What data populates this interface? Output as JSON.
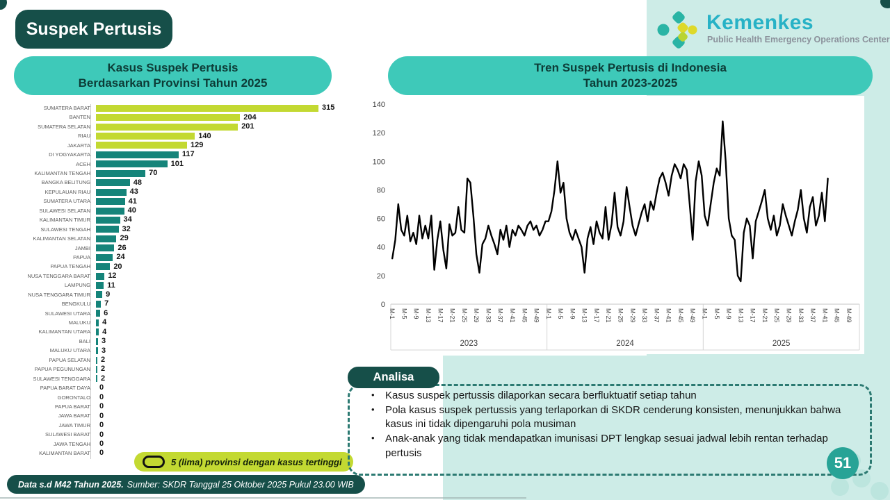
{
  "page": {
    "title": "Suspek Pertusis",
    "page_number": "51",
    "footer_bold": "Data s.d M42 Tahun 2025.",
    "footer_rest": "Sumber: SKDR Tanggal 25 Oktober 2025 Pukul 23.00 WIB"
  },
  "logo": {
    "name": "Kemenkes",
    "subtitle": "Public Health Emergency Operations Center"
  },
  "colors": {
    "dark_teal": "#164f49",
    "header_teal": "#3ec9b9",
    "mint_bg": "#cdece7",
    "lime": "#c3d932",
    "bar_teal": "#15847a",
    "line_black": "#000000",
    "page_circle": "#27a396"
  },
  "bar_panel": {
    "title_line1": "Kasus Suspek Pertusis",
    "title_line2": "Berdasarkan Provinsi Tahun 2025",
    "legend": "5 (lima) provinsi dengan kasus tertinggi"
  },
  "line_panel": {
    "title_line1": "Tren Suspek Pertusis di Indonesia",
    "title_line2": "Tahun 2023-2025"
  },
  "analysis": {
    "header": "Analisa",
    "bullets": [
      "Kasus suspek pertussis dilaporkan secara berfluktuatif setiap tahun",
      "Pola kasus suspek pertussis yang terlaporkan di SKDR cenderung konsisten, menunjukkan bahwa kasus ini tidak dipengaruhi pola musiman",
      "Anak-anak yang tidak mendapatkan imunisasi DPT lengkap sesuai jadwal lebih rentan terhadap pertusis"
    ]
  },
  "chart_data": [
    {
      "type": "bar",
      "title": "Kasus Suspek Pertusis Berdasarkan Provinsi Tahun 2025",
      "orientation": "horizontal",
      "categories": [
        "SUMATERA BARAT",
        "BANTEN",
        "SUMATERA SELATAN",
        "RIAU",
        "JAKARTA",
        "DI YOGYAKARTA",
        "ACEH",
        "KALIMANTAN TENGAH",
        "BANGKA BELITUNG",
        "KEPULAUAN RIAU",
        "SUMATERA UTARA",
        "SULAWESI SELATAN",
        "KALIMANTAN TIMUR",
        "SULAWESI TENGAH",
        "KALIMANTAN SELATAN",
        "JAMBI",
        "PAPUA",
        "PAPUA TENGAH",
        "NUSA TENGGARA BARAT",
        "LAMPUNG",
        "NUSA TENGGARA TIMUR",
        "BENGKULU",
        "SULAWESI UTARA",
        "MALUKU",
        "KALIMANTAN UTARA",
        "BALI",
        "MALUKU UTARA",
        "PAPUA SELATAN",
        "PAPUA PEGUNUNGAN",
        "SULAWESI TENGGARA",
        "PAPUA BARAT DAYA",
        "GORONTALO",
        "PAPUA BARAT",
        "JAWA BARAT",
        "JAWA TIMUR",
        "SULAWESI BARAT",
        "JAWA TENGAH",
        "KALIMANTAN BARAT"
      ],
      "values": [
        315,
        204,
        201,
        140,
        129,
        117,
        101,
        70,
        48,
        43,
        41,
        40,
        34,
        32,
        29,
        26,
        24,
        20,
        12,
        11,
        9,
        7,
        6,
        4,
        4,
        3,
        3,
        2,
        2,
        2,
        0,
        0,
        0,
        0,
        0,
        0,
        0,
        0
      ],
      "highlight_top_n": 5,
      "highlight_color": "#c3d932",
      "bar_color": "#15847a"
    },
    {
      "type": "line",
      "title": "Tren Suspek Pertusis di Indonesia Tahun 2023-2025",
      "ylabel": "",
      "ylim": [
        0,
        140
      ],
      "y_ticks": [
        0,
        20,
        40,
        60,
        80,
        100,
        120,
        140
      ],
      "x_tick_labels": [
        "M-1",
        "M-5",
        "M-9",
        "M-13",
        "M-17",
        "M-21",
        "M-25",
        "M-29",
        "M-33",
        "M-37",
        "M-41",
        "M-45",
        "M-49"
      ],
      "weeks_per_year": 52,
      "grid": false,
      "line_color": "#000000",
      "series": [
        {
          "name": "2023",
          "values": [
            32,
            45,
            70,
            52,
            48,
            62,
            44,
            50,
            42,
            62,
            46,
            55,
            46,
            62,
            24,
            45,
            58,
            38,
            25,
            56,
            48,
            50,
            68,
            52,
            50,
            88,
            85,
            62,
            35,
            22,
            42,
            46,
            55,
            48,
            42,
            35,
            52,
            45,
            55,
            40,
            52,
            48,
            55,
            52,
            48,
            55,
            58,
            52,
            55,
            48,
            52,
            58
          ]
        },
        {
          "name": "2024",
          "values": [
            58,
            65,
            80,
            100,
            78,
            85,
            60,
            50,
            45,
            52,
            46,
            40,
            22,
            46,
            54,
            42,
            58,
            50,
            46,
            68,
            45,
            56,
            78,
            54,
            48,
            58,
            82,
            68,
            55,
            48,
            56,
            64,
            70,
            58,
            72,
            66,
            78,
            88,
            92,
            85,
            76,
            90,
            98,
            94,
            88,
            98,
            94,
            70,
            45,
            86,
            100,
            90
          ]
        },
        {
          "name": "2025",
          "values": [
            62,
            55,
            70,
            85,
            95,
            90,
            128,
            100,
            60,
            48,
            45,
            20,
            16,
            50,
            60,
            55,
            32,
            58,
            65,
            72,
            80,
            60,
            52,
            62,
            48,
            55,
            70,
            62,
            55,
            48,
            58,
            66,
            80,
            60,
            50,
            68,
            75,
            55,
            62,
            78,
            58,
            88
          ]
        }
      ]
    }
  ]
}
